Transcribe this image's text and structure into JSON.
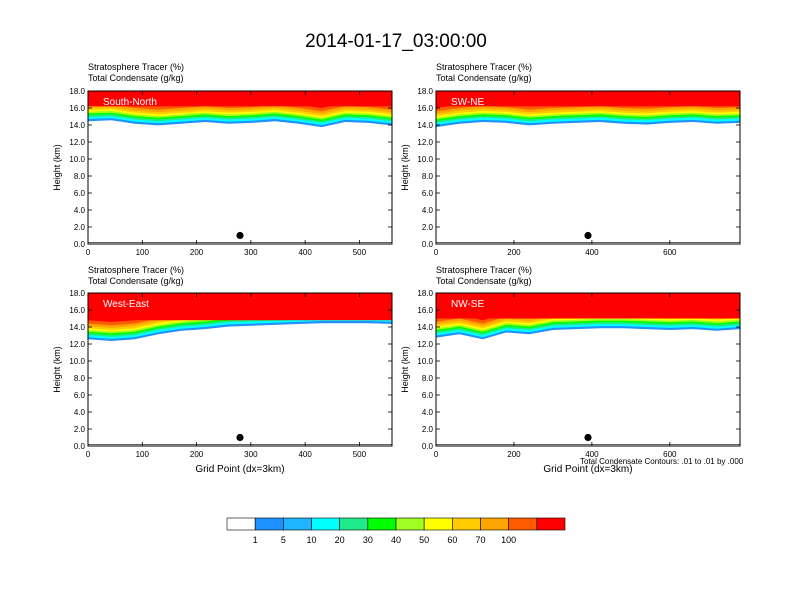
{
  "title": "2014-01-17_03:00:00",
  "panel_titles": {
    "tracer": "Stratosphere Tracer   (%)",
    "condensate": "Total Condensate   (g/kg)"
  },
  "contour_note": "Total Condensate Contours: .01 to .01 by .000",
  "colors": {
    "levels": [
      "#ffffff",
      "#1e90ff",
      "#1fb4ff",
      "#00ffff",
      "#1fea8c",
      "#00ff00",
      "#a0ff20",
      "#ffff00",
      "#ffcc00",
      "#ffa500",
      "#ff5a00",
      "#ff0000"
    ]
  },
  "colorbar_labels": [
    "1",
    "5",
    "10",
    "20",
    "30",
    "40",
    "50",
    "60",
    "70",
    "100"
  ],
  "chart_data": [
    {
      "type": "heatmap",
      "panel": "South-North",
      "label": "South-North",
      "title": "Stratosphere Tracer (%) / Total Condensate (g/kg)",
      "xlabel": "",
      "ylabel": "Height (km)",
      "xlim": [
        0,
        560
      ],
      "ylim": [
        0,
        18
      ],
      "x_ticks": [
        0,
        100,
        200,
        300,
        400,
        500
      ],
      "y_ticks": [
        "0.0",
        "2.0",
        "4.0",
        "6.0",
        "8.0",
        "10.0",
        "12.0",
        "14.0",
        "16.0",
        "18.0"
      ],
      "marker_x": 280,
      "tropopause_height_km": [
        15.3,
        15.4,
        15.0,
        14.8,
        15.0,
        15.2,
        15.0,
        15.1,
        15.3,
        15.0,
        14.6,
        15.2,
        15.1,
        14.8
      ]
    },
    {
      "type": "heatmap",
      "panel": "SW-NE",
      "label": "SW-NE",
      "title": "Stratosphere Tracer (%) / Total Condensate (g/kg)",
      "xlabel": "",
      "ylabel": "Height (km)",
      "xlim": [
        0,
        780
      ],
      "ylim": [
        0,
        18
      ],
      "x_ticks": [
        0,
        200,
        400,
        600
      ],
      "y_ticks": [
        "0.0",
        "2.0",
        "4.0",
        "6.0",
        "8.0",
        "10.0",
        "12.0",
        "14.0",
        "16.0",
        "18.0"
      ],
      "marker_x": 390,
      "tropopause_height_km": [
        14.6,
        15.0,
        15.2,
        15.1,
        14.8,
        15.0,
        15.1,
        15.2,
        15.0,
        14.9,
        15.1,
        15.2,
        15.0,
        15.1
      ]
    },
    {
      "type": "heatmap",
      "panel": "West-East",
      "label": "West-East",
      "title": "Stratosphere Tracer (%) / Total Condensate (g/kg)",
      "xlabel": "Grid Point (dx=3km)",
      "ylabel": "Height (km)",
      "xlim": [
        0,
        560
      ],
      "ylim": [
        0,
        18
      ],
      "x_ticks": [
        0,
        100,
        200,
        300,
        400,
        500
      ],
      "y_ticks": [
        "0.0",
        "2.0",
        "4.0",
        "6.0",
        "8.0",
        "10.0",
        "12.0",
        "14.0",
        "16.0",
        "18.0"
      ],
      "marker_x": 280,
      "tropopause_height_km": [
        13.4,
        13.2,
        13.4,
        14.0,
        14.4,
        14.6,
        14.9,
        15.0,
        15.1,
        15.2,
        15.3,
        15.3,
        15.3,
        15.2
      ]
    },
    {
      "type": "heatmap",
      "panel": "NW-SE",
      "label": "NW-SE",
      "title": "Stratosphere Tracer (%) / Total Condensate (g/kg)",
      "xlabel": "Grid Point (dx=3km)",
      "ylabel": "Height (km)",
      "xlim": [
        0,
        780
      ],
      "ylim": [
        0,
        18
      ],
      "x_ticks": [
        0,
        200,
        400,
        600
      ],
      "y_ticks": [
        "0.0",
        "2.0",
        "4.0",
        "6.0",
        "8.0",
        "10.0",
        "12.0",
        "14.0",
        "16.0",
        "18.0"
      ],
      "marker_x": 390,
      "tropopause_height_km": [
        13.6,
        14.0,
        13.4,
        14.2,
        14.0,
        14.5,
        14.6,
        14.7,
        14.7,
        14.6,
        14.5,
        14.6,
        14.4,
        14.6
      ]
    }
  ]
}
